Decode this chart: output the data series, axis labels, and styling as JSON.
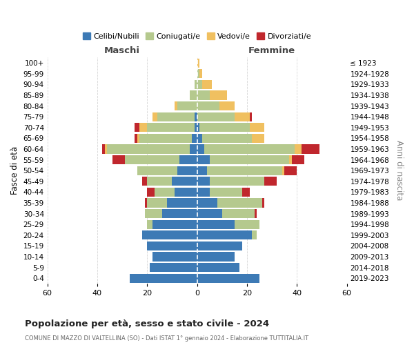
{
  "age_groups": [
    "0-4",
    "5-9",
    "10-14",
    "15-19",
    "20-24",
    "25-29",
    "30-34",
    "35-39",
    "40-44",
    "45-49",
    "50-54",
    "55-59",
    "60-64",
    "65-69",
    "70-74",
    "75-79",
    "80-84",
    "85-89",
    "90-94",
    "95-99",
    "100+"
  ],
  "birth_years": [
    "2019-2023",
    "2014-2018",
    "2009-2013",
    "2004-2008",
    "1999-2003",
    "1994-1998",
    "1989-1993",
    "1984-1988",
    "1979-1983",
    "1974-1978",
    "1969-1973",
    "1964-1968",
    "1959-1963",
    "1954-1958",
    "1949-1953",
    "1944-1948",
    "1939-1943",
    "1934-1938",
    "1929-1933",
    "1924-1928",
    "≤ 1923"
  ],
  "males": {
    "celibi": [
      27,
      19,
      18,
      20,
      22,
      18,
      14,
      12,
      9,
      10,
      8,
      7,
      3,
      2,
      1,
      1,
      0,
      0,
      0,
      0,
      0
    ],
    "coniugati": [
      0,
      0,
      0,
      0,
      0,
      2,
      7,
      8,
      8,
      10,
      16,
      22,
      33,
      21,
      19,
      15,
      8,
      3,
      1,
      0,
      0
    ],
    "vedovi": [
      0,
      0,
      0,
      0,
      0,
      0,
      0,
      0,
      0,
      0,
      0,
      0,
      1,
      1,
      3,
      2,
      1,
      0,
      0,
      0,
      0
    ],
    "divorziati": [
      0,
      0,
      0,
      0,
      0,
      0,
      0,
      1,
      3,
      2,
      0,
      5,
      1,
      1,
      2,
      0,
      0,
      0,
      0,
      0,
      0
    ]
  },
  "females": {
    "nubili": [
      25,
      17,
      15,
      18,
      22,
      15,
      10,
      8,
      5,
      5,
      4,
      5,
      3,
      2,
      1,
      0,
      0,
      0,
      0,
      0,
      0
    ],
    "coniugate": [
      0,
      0,
      0,
      0,
      2,
      10,
      13,
      18,
      13,
      22,
      30,
      32,
      36,
      20,
      20,
      15,
      9,
      5,
      2,
      1,
      0
    ],
    "vedove": [
      0,
      0,
      0,
      0,
      0,
      0,
      0,
      0,
      0,
      0,
      1,
      1,
      3,
      5,
      6,
      6,
      6,
      7,
      4,
      1,
      1
    ],
    "divorziate": [
      0,
      0,
      0,
      0,
      0,
      0,
      1,
      1,
      3,
      5,
      5,
      5,
      7,
      0,
      0,
      1,
      0,
      0,
      0,
      0,
      0
    ]
  },
  "color_celibi": "#3d7ab5",
  "color_coniugati": "#b5c98e",
  "color_vedovi": "#f0c060",
  "color_divorziati": "#c0272d",
  "xlim": 60,
  "title_main": "Popolazione per età, sesso e stato civile - 2024",
  "title_sub": "COMUNE DI MAZZO DI VALTELLINA (SO) - Dati ISTAT 1° gennaio 2024 - Elaborazione TUTTITALIA.IT",
  "label_maschi": "Maschi",
  "label_femmine": "Femmine",
  "label_fasce": "Fasce di età",
  "label_anni": "Anni di nascita",
  "legend_labels": [
    "Celibi/Nubili",
    "Coniugati/e",
    "Vedovi/e",
    "Divorziati/e"
  ],
  "bg_color": "#ffffff",
  "grid_color": "#cccccc"
}
